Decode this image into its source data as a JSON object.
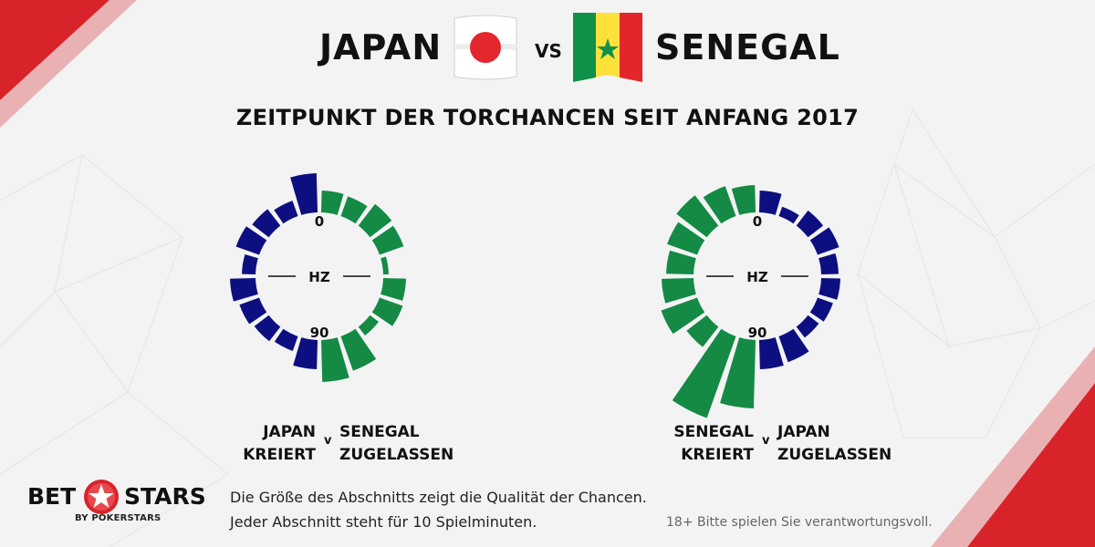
{
  "header": {
    "team_left": "JAPAN",
    "vs": "VS",
    "team_right": "SENEGAL",
    "subtitle": "ZEITPUNKT DER TORCHANCEN SEIT ANFANG 2017"
  },
  "colors": {
    "japan": "#0d0f80",
    "senegal": "#148a45",
    "accent_red": "#d8232a"
  },
  "chart_data": [
    {
      "type": "radial-bar",
      "center_label": "HZ",
      "start_label": "0",
      "end_label": "90",
      "left_series": {
        "name": "JAPAN KREIERT",
        "color": "#0d0f80",
        "values": [
          43,
          18,
          23,
          27,
          15,
          28,
          23,
          20,
          17,
          32
        ]
      },
      "right_series": {
        "name": "SENEGAL ZUGELASSEN",
        "color": "#148a45",
        "values": [
          24,
          23,
          30,
          28,
          6,
          25,
          27,
          12,
          40,
          46
        ]
      },
      "legend": {
        "left_line1": "JAPAN",
        "left_line2": "KREIERT",
        "v": "v",
        "right_line1": "SENEGAL",
        "right_line2": "ZUGELASSEN"
      }
    },
    {
      "type": "radial-bar",
      "center_label": "HZ",
      "start_label": "0",
      "end_label": "90",
      "left_series": {
        "name": "SENEGAL KREIERT",
        "color": "#148a45",
        "values": [
          30,
          35,
          42,
          35,
          30,
          35,
          42,
          28,
          95,
          75
        ]
      },
      "right_series": {
        "name": "JAPAN ZUGELASSEN",
        "color": "#0d0f80",
        "values": [
          24,
          11,
          21,
          25,
          19,
          21,
          18,
          15,
          30,
          32
        ]
      },
      "legend": {
        "left_line1": "SENEGAL",
        "left_line2": "KREIERT",
        "v": "v",
        "right_line1": "JAPAN",
        "right_line2": "ZUGELASSEN"
      }
    }
  ],
  "footer": {
    "brand_left": "BET",
    "brand_right": "STARS",
    "brand_sub": "BY POKERSTARS",
    "note_line1": "Die Größe des Abschnitts zeigt die Qualität der Chancen.",
    "note_line2": "Jeder Abschnitt steht für 10 Spielminuten.",
    "disclaimer": "18+ Bitte spielen Sie verantwortungsvoll."
  }
}
